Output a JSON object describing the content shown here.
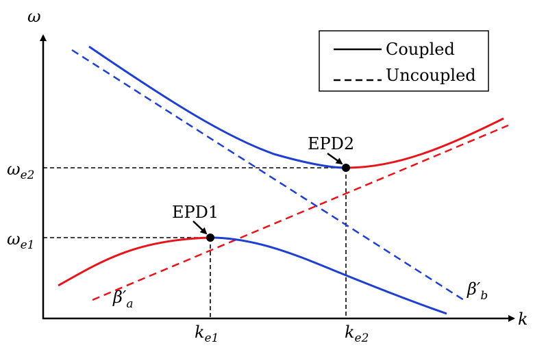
{
  "axes": {
    "y_label": "ω",
    "x_label": "k"
  },
  "y_ticks": [
    {
      "base": "ω",
      "sub": "e2"
    },
    {
      "base": "ω",
      "sub": "e1"
    }
  ],
  "x_ticks": [
    {
      "base": "k",
      "sub": "e1"
    },
    {
      "base": "k",
      "sub": "e2"
    }
  ],
  "points": [
    {
      "label": "EPD1"
    },
    {
      "label": "EPD2"
    }
  ],
  "curve_labels": [
    {
      "base": "β′",
      "sub": "a"
    },
    {
      "base": "β′",
      "sub": "b"
    }
  ],
  "legend": [
    {
      "label": "Coupled"
    },
    {
      "label": "Uncoupled"
    }
  ]
}
